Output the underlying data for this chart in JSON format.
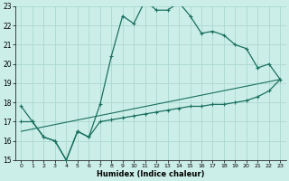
{
  "background_color": "#cceee8",
  "grid_color": "#aad8d0",
  "line_color": "#1a7060",
  "xlabel": "Humidex (Indice chaleur)",
  "xlim": [
    -0.5,
    23.5
  ],
  "ylim": [
    15,
    23
  ],
  "yticks": [
    15,
    16,
    17,
    18,
    19,
    20,
    21,
    22,
    23
  ],
  "xticks": [
    0,
    1,
    2,
    3,
    4,
    5,
    6,
    7,
    8,
    9,
    10,
    11,
    12,
    13,
    14,
    15,
    16,
    17,
    18,
    19,
    20,
    21,
    22,
    23
  ],
  "line1_x": [
    0,
    1,
    2,
    3,
    4,
    5,
    6,
    7,
    8,
    9,
    10,
    11,
    12,
    13,
    14,
    15,
    16,
    17,
    18,
    19,
    20,
    21,
    22,
    23
  ],
  "line1_y": [
    17.8,
    17.0,
    16.2,
    16.0,
    15.0,
    16.5,
    16.2,
    17.9,
    20.4,
    22.5,
    22.1,
    23.3,
    22.8,
    22.8,
    23.2,
    22.5,
    21.6,
    21.7,
    21.5,
    21.0,
    20.8,
    19.8,
    20.0,
    19.2
  ],
  "line2_x": [
    0,
    1,
    2,
    3,
    4,
    5,
    6,
    7,
    8,
    9,
    10,
    11,
    12,
    13,
    14,
    15,
    16,
    17,
    18,
    19,
    20,
    21,
    22,
    23
  ],
  "line2_y": [
    17.0,
    17.0,
    16.2,
    16.0,
    15.0,
    16.5,
    16.2,
    17.0,
    17.1,
    17.2,
    17.3,
    17.4,
    17.5,
    17.6,
    17.7,
    17.8,
    17.8,
    17.9,
    17.9,
    18.0,
    18.1,
    18.3,
    18.6,
    19.2
  ],
  "line3_x": [
    0,
    23
  ],
  "line3_y": [
    16.5,
    19.2
  ]
}
